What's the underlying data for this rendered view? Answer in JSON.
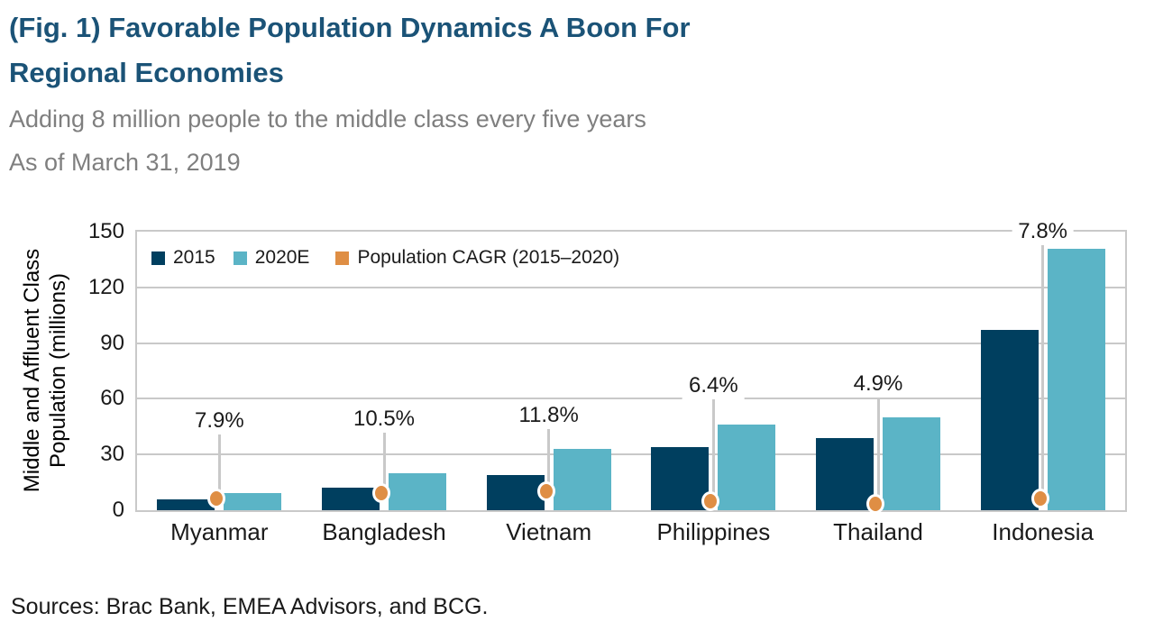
{
  "header": {
    "title_line1": "(Fig. 1) Favorable Population Dynamics A Boon For",
    "title_line2": "Regional Economies",
    "subtitle": "Adding 8 million people to the middle class every five years",
    "as_of": "As of March 31, 2019"
  },
  "footer": {
    "sources": "Sources: Brac Bank, EMEA Advisors, and BCG."
  },
  "colors": {
    "title_navy": "#1b5377",
    "bar_navy": "#003f5f",
    "bar_light_blue": "#5bb4c6",
    "cagr_orange": "#df8e44",
    "grid_gray": "#c9c9c9",
    "subtitle_gray": "#7f7f7f"
  },
  "chart_data": {
    "type": "bar",
    "categories": [
      "Myanmar",
      "Bangladesh",
      "Vietnam",
      "Philippines",
      "Thailand",
      "Indonesia"
    ],
    "series": [
      {
        "name": "2015",
        "type": "bar",
        "color": "#003f5f",
        "values": [
          6,
          12,
          19,
          34,
          39,
          97
        ]
      },
      {
        "name": "2020E",
        "type": "bar",
        "color": "#5bb4c6",
        "values": [
          9,
          20,
          33,
          46,
          50,
          141
        ]
      },
      {
        "name": "Population CAGR (2015–2020)",
        "type": "point",
        "color": "#df8e44",
        "values_percent": [
          7.9,
          10.5,
          11.8,
          6.4,
          4.9,
          7.8
        ],
        "point_labels": [
          "7.9%",
          "10.5%",
          "11.8%",
          "6.4%",
          "4.9%",
          "7.8%"
        ]
      }
    ],
    "ylabel": "Middle and Affluent Class Population (millions)",
    "ylabel_lines": [
      "Middle and Affluent Class",
      "Population (millions)"
    ],
    "yticks": [
      0,
      30,
      60,
      90,
      120,
      150
    ],
    "ylim": [
      0,
      150
    ],
    "grid": "horizontal",
    "legend_position": "top-left inside plot",
    "cagr_label_anchor_y": [
      48,
      49,
      51,
      67,
      68,
      150
    ]
  }
}
